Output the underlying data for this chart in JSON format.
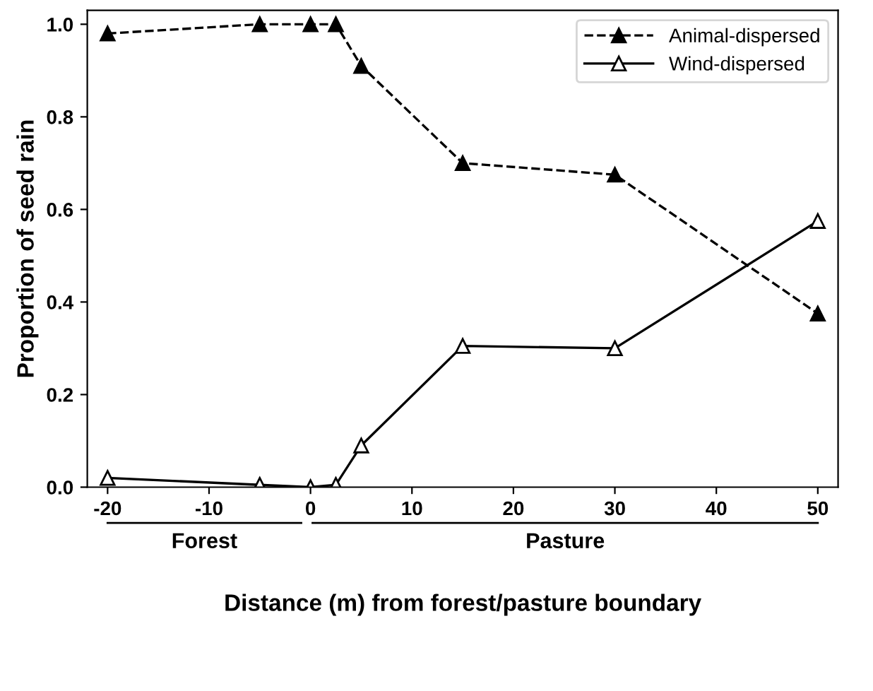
{
  "chart_data": {
    "type": "line",
    "xlabel": "Distance (m) from forest/pasture boundary",
    "ylabel": "Proportion of seed rain",
    "x": [
      -20,
      -5,
      0,
      2.5,
      5,
      15,
      30,
      50
    ],
    "series": [
      {
        "name": "Animal-dispersed",
        "color": "#000000",
        "line_style": "dashed",
        "values": [
          0.98,
          1.0,
          1.0,
          1.0,
          0.91,
          0.7,
          0.675,
          0.375
        ]
      },
      {
        "name": "Wind-dispersed",
        "color": "#000000",
        "line_style": "solid",
        "values": [
          0.02,
          0.005,
          0.0,
          0.005,
          0.09,
          0.305,
          0.3,
          0.575
        ]
      }
    ],
    "marker": "triangle",
    "xlim": [
      -22,
      52
    ],
    "ylim": [
      0,
      1.03
    ],
    "xticks": [
      -20,
      -10,
      0,
      10,
      20,
      30,
      40,
      50
    ],
    "yticks": [
      {
        "value": 0,
        "label": "0.0"
      },
      0.2,
      0.4,
      0.6,
      0.8,
      {
        "value": 1,
        "label": "1.0"
      }
    ],
    "annotations": [
      "Forest",
      "Pasture"
    ],
    "grid": false,
    "legend": "top right"
  }
}
